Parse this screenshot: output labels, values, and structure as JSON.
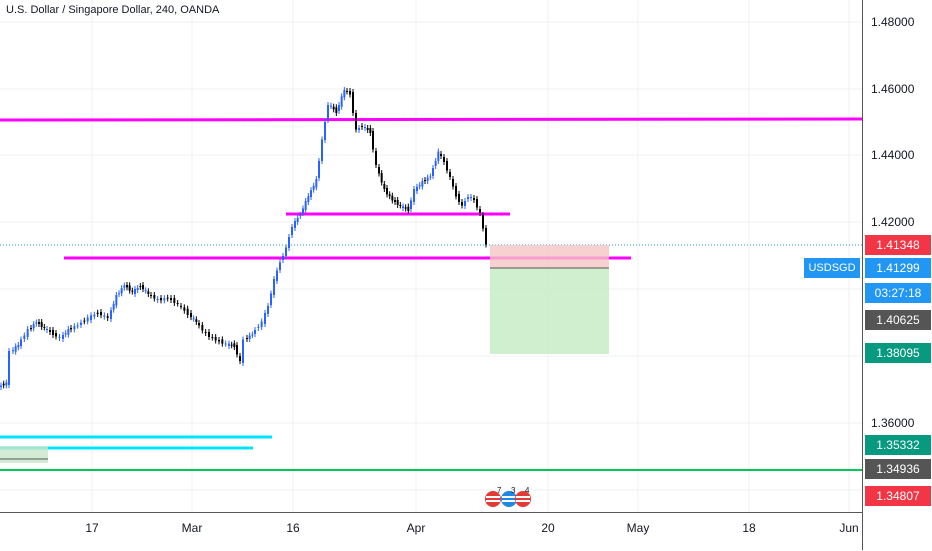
{
  "header": {
    "title": "U.S. Dollar / Singapore Dollar, 240, OANDA"
  },
  "price_axis": {
    "ticks": [
      "1.48000",
      "1.46000",
      "1.44000",
      "1.42000",
      "1.36000"
    ],
    "labels": [
      {
        "text": "1.41348",
        "color": "#f23645"
      },
      {
        "text": "1.41299",
        "color": "#2196f3"
      },
      {
        "text": "03:27:18",
        "color": "#2196f3"
      },
      {
        "text": "1.40625",
        "color": "#555555"
      },
      {
        "text": "1.38095",
        "color": "#089981"
      },
      {
        "text": "1.35332",
        "color": "#089981"
      },
      {
        "text": "1.34936",
        "color": "#555555"
      },
      {
        "text": "1.34807",
        "color": "#f23645"
      }
    ]
  },
  "symbol_tag": "USDSGD",
  "time_axis": {
    "labels": [
      "17",
      "Mar",
      "16",
      "Apr",
      "20",
      "May",
      "18",
      "Jun"
    ]
  },
  "events": {
    "badges": [
      "7",
      "3",
      "4"
    ]
  },
  "colors": {
    "level": "#ff00ff",
    "support": "#00e5ff",
    "line_green": "#00c853",
    "bull": "#2962ff",
    "bear": "#000000"
  }
}
